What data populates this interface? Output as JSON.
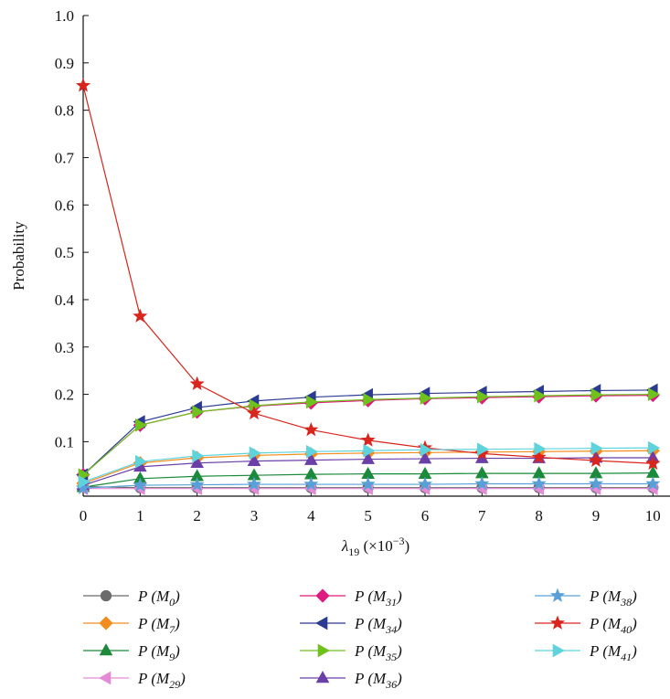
{
  "chart_data": {
    "type": "line",
    "xlabel": "λ19 (×10−3)",
    "ylabel": "Probability",
    "x": [
      0,
      1,
      2,
      3,
      4,
      5,
      6,
      7,
      8,
      9,
      10
    ],
    "xlim": [
      0,
      10.3
    ],
    "ylim": [
      -0.015,
      1.0
    ],
    "yticks": [
      "0.1",
      "0.2",
      "0.3",
      "0.4",
      "0.5",
      "0.6",
      "0.7",
      "0.8",
      "0.9",
      "1.0"
    ],
    "xticks": [
      "0",
      "1",
      "2",
      "3",
      "4",
      "5",
      "6",
      "7",
      "8",
      "9",
      "10"
    ],
    "grid": false,
    "legend_position": "bottom",
    "series": [
      {
        "name": "P (M0)",
        "marker": "circle",
        "color": "#6b6b6b",
        "values": [
          0.005,
          0.003,
          0.003,
          0.003,
          0.003,
          0.003,
          0.003,
          0.003,
          0.003,
          0.003,
          0.003
        ]
      },
      {
        "name": "P (M7)",
        "marker": "diamond",
        "color": "#f28c1e",
        "values": [
          0.012,
          0.055,
          0.066,
          0.071,
          0.074,
          0.076,
          0.077,
          0.078,
          0.079,
          0.08,
          0.081
        ]
      },
      {
        "name": "P (M9)",
        "marker": "triangle-up",
        "color": "#1b8a3a",
        "values": [
          0.004,
          0.022,
          0.027,
          0.029,
          0.031,
          0.032,
          0.032,
          0.033,
          0.033,
          0.033,
          0.034
        ]
      },
      {
        "name": "P (M29)",
        "marker": "triangle-left",
        "color": "#e58ad6",
        "values": [
          0.001,
          0.001,
          0.001,
          0.001,
          0.001,
          0.001,
          0.001,
          0.001,
          0.001,
          0.001,
          0.001
        ]
      },
      {
        "name": "P (M31)",
        "marker": "diamond",
        "color": "#e0197e",
        "values": [
          0.03,
          0.135,
          0.163,
          0.175,
          0.182,
          0.187,
          0.191,
          0.193,
          0.195,
          0.197,
          0.198
        ]
      },
      {
        "name": "P (M34)",
        "marker": "triangle-left",
        "color": "#2b3b91",
        "values": [
          0.03,
          0.142,
          0.172,
          0.186,
          0.194,
          0.199,
          0.202,
          0.204,
          0.206,
          0.208,
          0.209
        ]
      },
      {
        "name": "P (M35)",
        "marker": "triangle-right",
        "color": "#6fc21d",
        "values": [
          0.03,
          0.135,
          0.163,
          0.176,
          0.184,
          0.189,
          0.192,
          0.195,
          0.197,
          0.199,
          0.2
        ]
      },
      {
        "name": "P (M36)",
        "marker": "triangle-up",
        "color": "#6b3fa8",
        "values": [
          0.008,
          0.047,
          0.055,
          0.059,
          0.061,
          0.063,
          0.064,
          0.065,
          0.065,
          0.066,
          0.066
        ]
      },
      {
        "name": "P (M38)",
        "marker": "star",
        "color": "#5aa0d8",
        "values": [
          0.002,
          0.008,
          0.009,
          0.01,
          0.01,
          0.01,
          0.01,
          0.011,
          0.011,
          0.011,
          0.011
        ]
      },
      {
        "name": "P (M40)",
        "marker": "star",
        "color": "#d9251d",
        "values": [
          0.852,
          0.365,
          0.222,
          0.16,
          0.125,
          0.103,
          0.087,
          0.075,
          0.067,
          0.06,
          0.054
        ]
      },
      {
        "name": "P (M41)",
        "marker": "triangle-right",
        "color": "#5fd3dc",
        "values": [
          0.015,
          0.058,
          0.07,
          0.076,
          0.079,
          0.081,
          0.083,
          0.084,
          0.085,
          0.086,
          0.087
        ]
      }
    ]
  }
}
